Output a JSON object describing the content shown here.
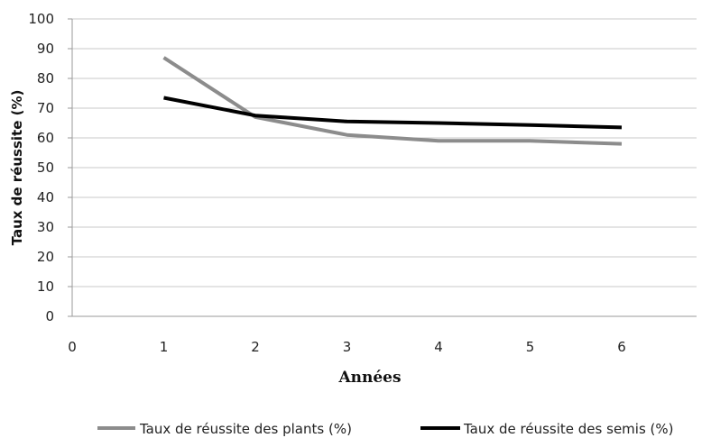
{
  "chart_data": {
    "type": "line",
    "xlabel": "Années",
    "ylabel": "Taux de réussite (%)",
    "xlim": [
      0,
      7
    ],
    "ylim": [
      0,
      100
    ],
    "x_ticks": [
      0,
      1,
      2,
      3,
      4,
      5,
      6
    ],
    "y_ticks": [
      0,
      10,
      20,
      30,
      40,
      50,
      60,
      70,
      80,
      90,
      100
    ],
    "grid": "horizontal",
    "legend_position": "bottom",
    "series": [
      {
        "name": "Taux de réussite des plants (%)",
        "color": "#8c8c8c",
        "x": [
          1,
          2,
          3,
          4,
          5,
          6
        ],
        "y": [
          87,
          67,
          61,
          59,
          59,
          58
        ]
      },
      {
        "name": "Taux de réussite des semis (%)",
        "color": "#000000",
        "x": [
          1,
          2,
          3,
          4,
          5,
          6
        ],
        "y": [
          73.5,
          67.5,
          65.5,
          65,
          64.3,
          63.5
        ]
      }
    ]
  }
}
